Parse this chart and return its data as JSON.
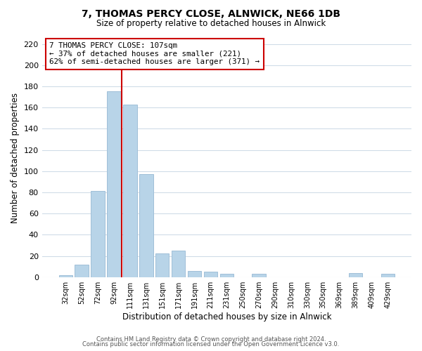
{
  "title": "7, THOMAS PERCY CLOSE, ALNWICK, NE66 1DB",
  "subtitle": "Size of property relative to detached houses in Alnwick",
  "xlabel": "Distribution of detached houses by size in Alnwick",
  "ylabel": "Number of detached properties",
  "bar_labels": [
    "32sqm",
    "52sqm",
    "72sqm",
    "92sqm",
    "111sqm",
    "131sqm",
    "151sqm",
    "171sqm",
    "191sqm",
    "211sqm",
    "231sqm",
    "250sqm",
    "270sqm",
    "290sqm",
    "310sqm",
    "330sqm",
    "350sqm",
    "369sqm",
    "389sqm",
    "409sqm",
    "429sqm"
  ],
  "bar_heights": [
    2,
    12,
    81,
    175,
    163,
    97,
    22,
    25,
    6,
    5,
    3,
    0,
    3,
    0,
    0,
    0,
    0,
    0,
    4,
    0,
    3
  ],
  "bar_color": "#b8d4e8",
  "bar_edge_color": "#a0bfd8",
  "vline_x": 3.5,
  "vline_color": "#cc0000",
  "annotation_title": "7 THOMAS PERCY CLOSE: 107sqm",
  "annotation_line1": "← 37% of detached houses are smaller (221)",
  "annotation_line2": "62% of semi-detached houses are larger (371) →",
  "annotation_box_color": "#ffffff",
  "annotation_box_edge": "#cc0000",
  "ylim": [
    0,
    225
  ],
  "yticks": [
    0,
    20,
    40,
    60,
    80,
    100,
    120,
    140,
    160,
    180,
    200,
    220
  ],
  "footer1": "Contains HM Land Registry data © Crown copyright and database right 2024.",
  "footer2": "Contains public sector information licensed under the Open Government Licence v3.0.",
  "background_color": "#ffffff",
  "grid_color": "#d0dce8"
}
